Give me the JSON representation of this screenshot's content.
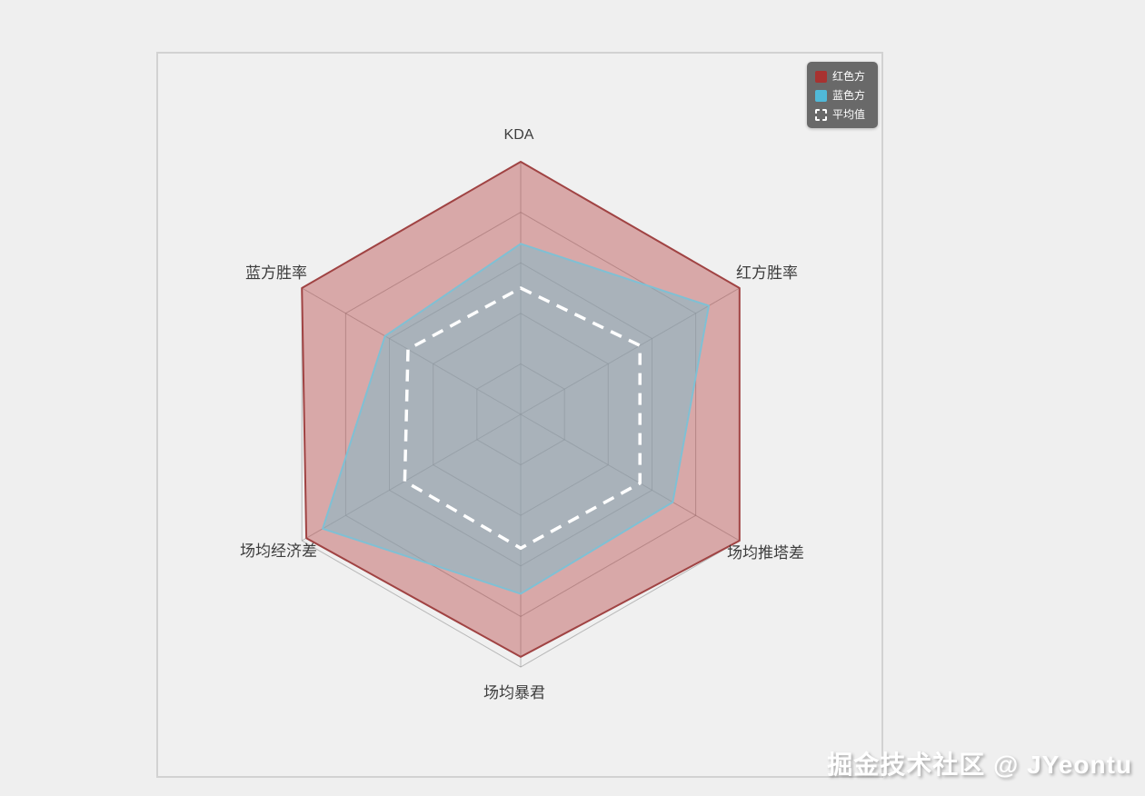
{
  "page": {
    "watermark": "掘金技术社区 @ JYeontu"
  },
  "chart_data": {
    "type": "radar",
    "indicators": [
      {
        "name": "KDA",
        "max": 1
      },
      {
        "name": "红方胜率",
        "max": 1
      },
      {
        "name": "场均推塔差",
        "max": 1
      },
      {
        "name": "场均暴君",
        "max": 1
      },
      {
        "name": "场均经济差",
        "max": 1
      },
      {
        "name": "蓝方胜率",
        "max": 1
      }
    ],
    "series": [
      {
        "name": "红色方",
        "values": [
          1.0,
          1.0,
          1.0,
          0.96,
          0.98,
          1.0
        ],
        "stroke": "#a04343",
        "fill": "rgba(180,60,60,0.40)",
        "style": "solid",
        "stroke_width": 2
      },
      {
        "name": "蓝色方",
        "values": [
          0.675,
          0.86,
          0.695,
          0.71,
          0.905,
          0.62
        ],
        "stroke": "#7fc0d4",
        "fill": "rgba(122,188,204,0.50)",
        "style": "solid",
        "stroke_width": 2
      },
      {
        "name": "平均值",
        "values": [
          0.5,
          0.545,
          0.545,
          0.53,
          0.53,
          0.515
        ],
        "stroke": "#ffffff",
        "fill": "none",
        "style": "dashed",
        "stroke_width": 3.5
      }
    ],
    "rings": 5,
    "radius": 278,
    "center": [
      399,
      397
    ],
    "start_axis": "top",
    "direction": "clockwise",
    "grid_color": "rgba(128,128,128,0.50)",
    "legend_position": "top-right"
  },
  "legend": {
    "items": [
      {
        "label": "红色方",
        "swatch": "#a83230",
        "type": "square"
      },
      {
        "label": "蓝色方",
        "swatch": "#50b9d8",
        "type": "square"
      },
      {
        "label": "平均值",
        "swatch": "#ffffff",
        "type": "dashed-square"
      }
    ]
  },
  "colors": {
    "page_background": "#efefef",
    "panel_border": "#d2d2d2",
    "legend_background": "#696969",
    "axis_label": "#3d3d3d"
  }
}
